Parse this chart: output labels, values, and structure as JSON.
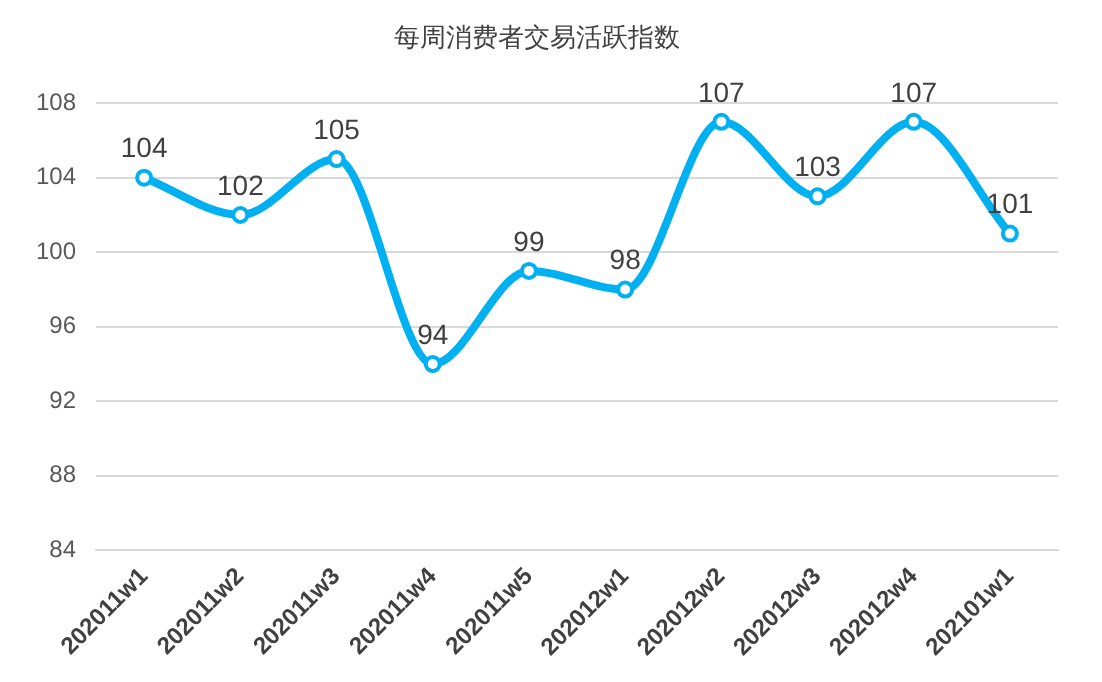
{
  "chart_data": {
    "type": "line",
    "title": "每周消费者交易活跃指数",
    "categories": [
      "202011w1",
      "202011w2",
      "202011w3",
      "202011w4",
      "202011w5",
      "202012w1",
      "202012w2",
      "202012w3",
      "202012w4",
      "202101w1"
    ],
    "series": [
      {
        "color": "#00b0f0",
        "values": [
          104,
          102,
          105,
          94,
          99,
          98,
          107,
          103,
          107,
          101
        ]
      }
    ],
    "ylim": [
      84,
      108
    ],
    "yticks": [
      84,
      88,
      92,
      96,
      100,
      104,
      108
    ],
    "grid": "y",
    "legend": false,
    "marker": "circle",
    "data_labels": true
  }
}
